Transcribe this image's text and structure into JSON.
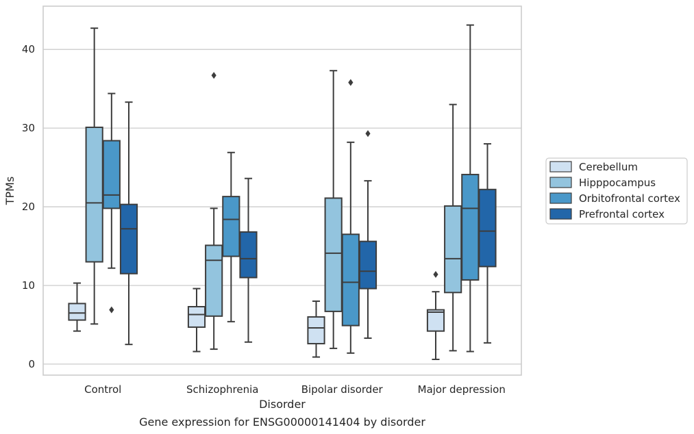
{
  "chart_data": {
    "type": "box",
    "caption": "Gene expression for ENSG00000141404 by disorder",
    "xlabel": "Disorder",
    "ylabel": "TPMs",
    "ylim": [
      -1.4,
      45.5
    ],
    "yticks": [
      0,
      10,
      20,
      30,
      40
    ],
    "grid": "horizontal",
    "legend_position": "right",
    "categories": [
      "Control",
      "Schizophrenia",
      "Bipolar disorder",
      "Major depression"
    ],
    "series": [
      {
        "name": "Cerebellum",
        "color": "#cfe1f2",
        "boxes": [
          {
            "whisker_low": 4.2,
            "q1": 5.6,
            "median": 6.5,
            "q3": 7.7,
            "whisker_high": 10.3,
            "outliers": []
          },
          {
            "whisker_low": 1.6,
            "q1": 4.7,
            "median": 6.3,
            "q3": 7.3,
            "whisker_high": 9.6,
            "outliers": []
          },
          {
            "whisker_low": 0.9,
            "q1": 2.6,
            "median": 4.6,
            "q3": 6.0,
            "whisker_high": 8.0,
            "outliers": []
          },
          {
            "whisker_low": 0.6,
            "q1": 4.2,
            "median": 6.6,
            "q3": 6.9,
            "whisker_high": 9.2,
            "outliers": [
              11.4
            ]
          }
        ]
      },
      {
        "name": "Hipppocampus",
        "color": "#93c4de",
        "boxes": [
          {
            "whisker_low": 5.1,
            "q1": 13.0,
            "median": 20.5,
            "q3": 30.1,
            "whisker_high": 42.7,
            "outliers": []
          },
          {
            "whisker_low": 1.9,
            "q1": 6.1,
            "median": 13.2,
            "q3": 15.1,
            "whisker_high": 19.8,
            "outliers": [
              36.7
            ]
          },
          {
            "whisker_low": 2.0,
            "q1": 6.7,
            "median": 14.1,
            "q3": 21.1,
            "whisker_high": 37.3,
            "outliers": []
          },
          {
            "whisker_low": 1.7,
            "q1": 9.1,
            "median": 13.4,
            "q3": 20.1,
            "whisker_high": 33.0,
            "outliers": []
          }
        ]
      },
      {
        "name": "Orbitofrontal cortex",
        "color": "#4a98c9",
        "boxes": [
          {
            "whisker_low": 12.2,
            "q1": 19.8,
            "median": 21.5,
            "q3": 28.4,
            "whisker_high": 34.4,
            "outliers": [
              6.9
            ]
          },
          {
            "whisker_low": 5.4,
            "q1": 13.7,
            "median": 18.4,
            "q3": 21.3,
            "whisker_high": 26.9,
            "outliers": []
          },
          {
            "whisker_low": 1.4,
            "q1": 4.9,
            "median": 10.4,
            "q3": 16.5,
            "whisker_high": 28.2,
            "outliers": [
              35.8
            ]
          },
          {
            "whisker_low": 1.6,
            "q1": 10.7,
            "median": 19.8,
            "q3": 24.1,
            "whisker_high": 43.1,
            "outliers": []
          }
        ]
      },
      {
        "name": "Prefrontal cortex",
        "color": "#2266a9",
        "boxes": [
          {
            "whisker_low": 2.5,
            "q1": 11.5,
            "median": 17.2,
            "q3": 20.3,
            "whisker_high": 33.3,
            "outliers": []
          },
          {
            "whisker_low": 2.8,
            "q1": 11.0,
            "median": 13.4,
            "q3": 16.8,
            "whisker_high": 23.6,
            "outliers": []
          },
          {
            "whisker_low": 3.3,
            "q1": 9.6,
            "median": 11.8,
            "q3": 15.6,
            "whisker_high": 23.3,
            "outliers": [
              29.3
            ]
          },
          {
            "whisker_low": 2.7,
            "q1": 12.4,
            "median": 16.9,
            "q3": 22.2,
            "whisker_high": 28.0,
            "outliers": []
          }
        ]
      }
    ]
  }
}
